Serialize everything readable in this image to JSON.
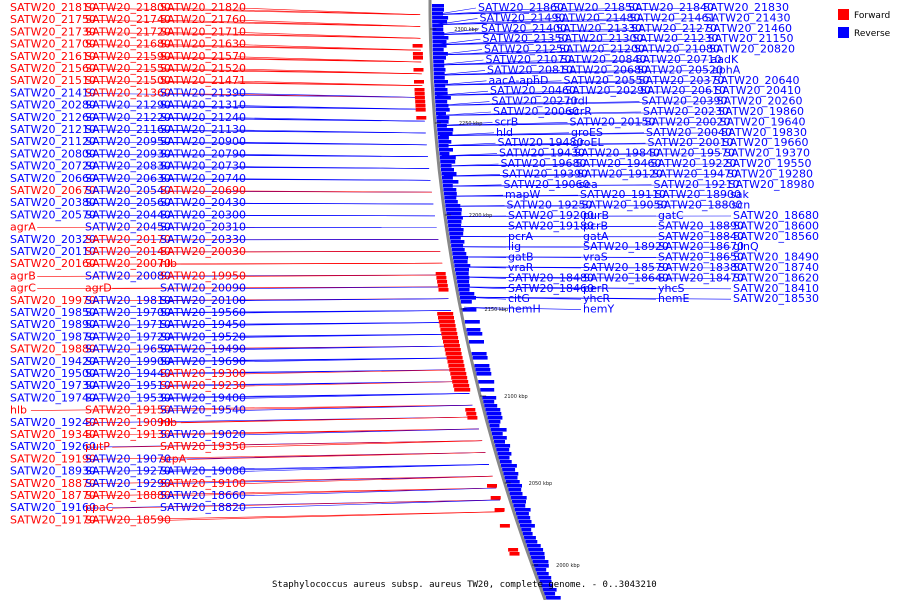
{
  "colors": {
    "forward": "#ff0000",
    "reverse": "#0000ff",
    "backbone": "#888888"
  },
  "legend": [
    {
      "label": "Forward",
      "color": "#ff0000"
    },
    {
      "label": "Reverse",
      "color": "#0000ff"
    }
  ],
  "caption": "Staphylococcus aureus subsp. aureus TW20, complete genome. - 0..3043210",
  "ticks": [
    "2300 kbp",
    "2250 kbp",
    "2200 kbp",
    "2150 kbp",
    "2100 kbp",
    "2050 kbp",
    "2000 kbp"
  ],
  "left_labels": [
    {
      "t": "SATW20_21810",
      "s": "f"
    },
    {
      "t": "SATW20_21800",
      "s": "f"
    },
    {
      "t": "SATW20_21820",
      "s": "f"
    },
    {
      "t": "SATW20_21750",
      "s": "f"
    },
    {
      "t": "SATW20_21740",
      "s": "f"
    },
    {
      "t": "SATW20_21760",
      "s": "f"
    },
    {
      "t": "SATW20_21730",
      "s": "f"
    },
    {
      "t": "SATW20_21720",
      "s": "f"
    },
    {
      "t": "SATW20_21710",
      "s": "f"
    },
    {
      "t": "SATW20_21700",
      "s": "f"
    },
    {
      "t": "SATW20_21680",
      "s": "f"
    },
    {
      "t": "SATW20_21630",
      "s": "f"
    },
    {
      "t": "SATW20_21610",
      "s": "f"
    },
    {
      "t": "SATW20_21590",
      "s": "f"
    },
    {
      "t": "SATW20_21570",
      "s": "f"
    },
    {
      "t": "SATW20_21560",
      "s": "f"
    },
    {
      "t": "SATW20_21550",
      "s": "f"
    },
    {
      "t": "SATW20_21520",
      "s": "f"
    },
    {
      "t": "SATW20_21510",
      "s": "f"
    },
    {
      "t": "SATW20_21500",
      "s": "f"
    },
    {
      "t": "SATW20_21471",
      "s": "f"
    },
    {
      "t": "SATW20_21410",
      "s": "r"
    },
    {
      "t": "SATW20_21360",
      "s": "f"
    },
    {
      "t": "SATW20_21390",
      "s": "r"
    },
    {
      "t": "SATW20_20280",
      "s": "r"
    },
    {
      "t": "SATW20_21290",
      "s": "r"
    },
    {
      "t": "SATW20_21310",
      "s": "r"
    },
    {
      "t": "SATW20_21260",
      "s": "r"
    },
    {
      "t": "SATW20_21220",
      "s": "r"
    },
    {
      "t": "SATW20_21240",
      "s": "r"
    },
    {
      "t": "SATW20_21210",
      "s": "r"
    },
    {
      "t": "SATW20_21160",
      "s": "r"
    },
    {
      "t": "SATW20_21130",
      "s": "r"
    },
    {
      "t": "SATW20_21120",
      "s": "r"
    },
    {
      "t": "SATW20_20950",
      "s": "r"
    },
    {
      "t": "SATW20_20900",
      "s": "r"
    },
    {
      "t": "SATW20_20800",
      "s": "r"
    },
    {
      "t": "SATW20_20930",
      "s": "r"
    },
    {
      "t": "SATW20_20790",
      "s": "r"
    },
    {
      "t": "SATW20_20720",
      "s": "r"
    },
    {
      "t": "SATW20_20830",
      "s": "r"
    },
    {
      "t": "SATW20_20730",
      "s": "r"
    },
    {
      "t": "SATW20_20660",
      "s": "r"
    },
    {
      "t": "SATW20_20630",
      "s": "r"
    },
    {
      "t": "SATW20_20740",
      "s": "r"
    },
    {
      "t": "SATW20_20670",
      "s": "f"
    },
    {
      "t": "SATW20_20540",
      "s": "r"
    },
    {
      "t": "SATW20_20690",
      "s": "f"
    },
    {
      "t": "SATW20_20380",
      "s": "r"
    },
    {
      "t": "SATW20_20560",
      "s": "r"
    },
    {
      "t": "SATW20_20430",
      "s": "r"
    },
    {
      "t": "SATW20_20570",
      "s": "r"
    },
    {
      "t": "SATW20_20440",
      "s": "r"
    },
    {
      "t": "SATW20_20300",
      "s": "r"
    },
    {
      "t": "agrA",
      "s": "f"
    },
    {
      "t": "SATW20_20450",
      "s": "r"
    },
    {
      "t": "SATW20_20310",
      "s": "r"
    },
    {
      "t": "SATW20_20320",
      "s": "r"
    },
    {
      "t": "SATW20_20170",
      "s": "f"
    },
    {
      "t": "SATW20_20330",
      "s": "r"
    },
    {
      "t": "SATW20_20110",
      "s": "r"
    },
    {
      "t": "SATW20_20140",
      "s": "f"
    },
    {
      "t": "SATW20_20030",
      "s": "f"
    },
    {
      "t": "SATW20_20160",
      "s": "f"
    },
    {
      "t": "SATW20_20070",
      "s": "f"
    },
    {
      "t": "hlb",
      "s": "f"
    },
    {
      "t": "agrB",
      "s": "f"
    },
    {
      "t": "SATW20_20080",
      "s": "r"
    },
    {
      "t": "SATW20_19950",
      "s": "f"
    },
    {
      "t": "agrC",
      "s": "f"
    },
    {
      "t": "agrD",
      "s": "f"
    },
    {
      "t": "SATW20_20090",
      "s": "r"
    },
    {
      "t": "SATW20_19970",
      "s": "f"
    },
    {
      "t": "SATW20_19810",
      "s": "r"
    },
    {
      "t": "SATW20_20100",
      "s": "r"
    },
    {
      "t": "SATW20_19850",
      "s": "r"
    },
    {
      "t": "SATW20_19700",
      "s": "r"
    },
    {
      "t": "SATW20_19560",
      "s": "r"
    },
    {
      "t": "SATW20_19890",
      "s": "r"
    },
    {
      "t": "SATW20_19710",
      "s": "r"
    },
    {
      "t": "SATW20_19450",
      "s": "r"
    },
    {
      "t": "SATW20_19870",
      "s": "r"
    },
    {
      "t": "SATW20_19720",
      "s": "r"
    },
    {
      "t": "SATW20_19520",
      "s": "r"
    },
    {
      "t": "SATW20_19880",
      "s": "f"
    },
    {
      "t": "SATW20_19650",
      "s": "r"
    },
    {
      "t": "SATW20_19490",
      "s": "r"
    },
    {
      "t": "SATW20_19420",
      "s": "r"
    },
    {
      "t": "SATW20_19900",
      "s": "r"
    },
    {
      "t": "SATW20_19690",
      "s": "r"
    },
    {
      "t": "SATW20_19500",
      "s": "r"
    },
    {
      "t": "SATW20_19440",
      "s": "r"
    },
    {
      "t": "SATW20_19300",
      "s": "f"
    },
    {
      "t": "SATW20_19730",
      "s": "r"
    },
    {
      "t": "SATW20_19510",
      "s": "r"
    },
    {
      "t": "SATW20_19230",
      "s": "f"
    },
    {
      "t": "SATW20_19740",
      "s": "r"
    },
    {
      "t": "SATW20_19530",
      "s": "r"
    },
    {
      "t": "SATW20_19400",
      "s": "r"
    },
    {
      "t": "hlb",
      "s": "f"
    },
    {
      "t": "SATW20_19150",
      "s": "f"
    },
    {
      "t": "SATW20_19540",
      "s": "r"
    },
    {
      "t": "SATW20_19240",
      "s": "r"
    },
    {
      "t": "SATW20_19090",
      "s": "f"
    },
    {
      "t": "hlb",
      "s": "f"
    },
    {
      "t": "SATW20_19340",
      "s": "f"
    },
    {
      "t": "SATW20_19130",
      "s": "f"
    },
    {
      "t": "SATW20_19020",
      "s": "r"
    },
    {
      "t": "SATW20_19260",
      "s": "r"
    },
    {
      "t": "putP",
      "s": "f"
    },
    {
      "t": "SATW20_19350",
      "s": "f"
    },
    {
      "t": "SATW20_19190",
      "s": "f"
    },
    {
      "t": "SATW20_19070",
      "s": "r"
    },
    {
      "t": "scpA",
      "s": "f"
    },
    {
      "t": "SATW20_18930",
      "s": "r"
    },
    {
      "t": "SATW20_19270",
      "s": "r"
    },
    {
      "t": "SATW20_19080",
      "s": "r"
    },
    {
      "t": "SATW20_18870",
      "s": "f"
    },
    {
      "t": "SATW20_19290",
      "s": "r"
    },
    {
      "t": "SATW20_19100",
      "s": "f"
    },
    {
      "t": "SATW20_18770",
      "s": "f"
    },
    {
      "t": "SATW20_18880",
      "s": "f"
    },
    {
      "t": "SATW20_18660",
      "s": "r"
    },
    {
      "t": "SATW20_19160",
      "s": "r"
    },
    {
      "t": "ppaC",
      "s": "f"
    },
    {
      "t": "SATW20_18820",
      "s": "r"
    },
    {
      "t": "SATW20_19170",
      "s": "f"
    },
    {
      "t": "SATW20_18590",
      "s": "f"
    }
  ],
  "right_labels": [
    {
      "t": "SATW20_21860",
      "s": "r"
    },
    {
      "t": "SATW20_21850",
      "s": "r"
    },
    {
      "t": "SATW20_21840",
      "s": "r"
    },
    {
      "t": "SATW20_21830",
      "s": "r"
    },
    {
      "t": "SATW20_21490",
      "s": "r"
    },
    {
      "t": "SATW20_21480",
      "s": "r"
    },
    {
      "t": "SATW20_21461",
      "s": "r"
    },
    {
      "t": "SATW20_21430",
      "s": "r"
    },
    {
      "t": "SATW20_21400",
      "s": "r"
    },
    {
      "t": "SATW20_21330",
      "s": "r"
    },
    {
      "t": "SATW20_21270",
      "s": "r"
    },
    {
      "t": "SATW20_21460",
      "s": "r"
    },
    {
      "t": "SATW20_21350",
      "s": "r"
    },
    {
      "t": "SATW20_21300",
      "s": "r"
    },
    {
      "t": "SATW20_21230",
      "s": "r"
    },
    {
      "t": "SATW20_21150",
      "s": "r"
    },
    {
      "t": "SATW20_21250",
      "s": "r"
    },
    {
      "t": "SATW20_21200",
      "s": "r"
    },
    {
      "t": "SATW20_21080",
      "s": "r"
    },
    {
      "t": "SATW20_20820",
      "s": "r"
    },
    {
      "t": "SATW20_21070",
      "s": "r"
    },
    {
      "t": "SATW20_20840",
      "s": "r"
    },
    {
      "t": "SATW20_20710",
      "s": "r"
    },
    {
      "t": "aadK",
      "s": "r"
    },
    {
      "t": "SATW20_20810",
      "s": "r"
    },
    {
      "t": "SATW20_20680",
      "s": "r"
    },
    {
      "t": "SATW20_20520",
      "s": "r"
    },
    {
      "t": "aphA",
      "s": "r"
    },
    {
      "t": "aacA-aphD",
      "s": "r"
    },
    {
      "t": "SATW20_20550",
      "s": "r"
    },
    {
      "t": "SATW20_20370",
      "s": "r"
    },
    {
      "t": "SATW20_20640",
      "s": "r"
    },
    {
      "t": "SATW20_20460",
      "s": "r"
    },
    {
      "t": "SATW20_20290",
      "s": "r"
    },
    {
      "t": "SATW20_20610",
      "s": "r"
    },
    {
      "t": "SATW20_20410",
      "s": "r"
    },
    {
      "t": "SATW20_20270",
      "s": "r"
    },
    {
      "t": "nrdI",
      "s": "r"
    },
    {
      "t": "SATW20_20390",
      "s": "r"
    },
    {
      "t": "SATW20_20260",
      "s": "r"
    },
    {
      "t": "SATW20_20060",
      "s": "r"
    },
    {
      "t": "scrR",
      "s": "r"
    },
    {
      "t": "SATW20_20230",
      "s": "r"
    },
    {
      "t": "SATW20_19860",
      "s": "r"
    },
    {
      "t": "scrB",
      "s": "r"
    },
    {
      "t": "SATW20_20150",
      "s": "r"
    },
    {
      "t": "SATW20_20020",
      "s": "r"
    },
    {
      "t": "SATW20_19640",
      "s": "r"
    },
    {
      "t": "hld",
      "s": "r"
    },
    {
      "t": "groES",
      "s": "r"
    },
    {
      "t": "SATW20_20040",
      "s": "r"
    },
    {
      "t": "SATW20_19830",
      "s": "r"
    },
    {
      "t": "SATW20_19480",
      "s": "r"
    },
    {
      "t": "groEL",
      "s": "r"
    },
    {
      "t": "SATW20_20010",
      "s": "r"
    },
    {
      "t": "SATW20_19660",
      "s": "r"
    },
    {
      "t": "SATW20_19430",
      "s": "r"
    },
    {
      "t": "SATW20_19840",
      "s": "r"
    },
    {
      "t": "SATW20_19570",
      "s": "r"
    },
    {
      "t": "SATW20_19370",
      "s": "r"
    },
    {
      "t": "SATW20_19680",
      "s": "r"
    },
    {
      "t": "SATW20_19460",
      "s": "r"
    },
    {
      "t": "SATW20_19220",
      "s": "r"
    },
    {
      "t": "SATW20_19550",
      "s": "r"
    },
    {
      "t": "SATW20_19390",
      "s": "r"
    },
    {
      "t": "SATW20_19120",
      "s": "r"
    },
    {
      "t": "SATW20_19470",
      "s": "r"
    },
    {
      "t": "SATW20_19280",
      "s": "r"
    },
    {
      "t": "SATW20_19060",
      "s": "r"
    },
    {
      "t": "sea",
      "s": "r"
    },
    {
      "t": "SATW20_19210",
      "s": "r"
    },
    {
      "t": "SATW20_18980",
      "s": "r"
    },
    {
      "t": "mapW",
      "s": "r"
    },
    {
      "t": "SATW20_19110",
      "s": "r"
    },
    {
      "t": "SATW20_18900",
      "s": "r"
    },
    {
      "t": "sak",
      "s": "r"
    },
    {
      "t": "SATW20_19250",
      "s": "r"
    },
    {
      "t": "SATW20_19050",
      "s": "r"
    },
    {
      "t": "SATW20_18800",
      "s": "r"
    },
    {
      "t": "scn",
      "s": "r"
    },
    {
      "t": "SATW20_19200",
      "s": "r"
    },
    {
      "t": "purB",
      "s": "r"
    },
    {
      "t": "gatC",
      "s": "r"
    },
    {
      "t": "SATW20_18680",
      "s": "r"
    },
    {
      "t": "SATW20_19180",
      "s": "r"
    },
    {
      "t": "pcrB",
      "s": "r"
    },
    {
      "t": "SATW20_18890",
      "s": "r"
    },
    {
      "t": "SATW20_18600",
      "s": "r"
    },
    {
      "t": "pcrA",
      "s": "r"
    },
    {
      "t": "gatA",
      "s": "r"
    },
    {
      "t": "SATW20_18840",
      "s": "r"
    },
    {
      "t": "SATW20_18560",
      "s": "r"
    },
    {
      "t": "lig",
      "s": "r"
    },
    {
      "t": "SATW20_18920",
      "s": "r"
    },
    {
      "t": "SATW20_18670",
      "s": "r"
    },
    {
      "t": "glnQ",
      "s": "r"
    },
    {
      "t": "gatB",
      "s": "r"
    },
    {
      "t": "vraS",
      "s": "r"
    },
    {
      "t": "SATW20_18650",
      "s": "r"
    },
    {
      "t": "SATW20_18490",
      "s": "r"
    },
    {
      "t": "vraR",
      "s": "r"
    },
    {
      "t": "SATW20_18570",
      "s": "r"
    },
    {
      "t": "SATW20_18380",
      "s": "r"
    },
    {
      "t": "SATW20_18740",
      "s": "r"
    },
    {
      "t": "SATW20_18480",
      "s": "r"
    },
    {
      "t": "SATW20_18640",
      "s": "r"
    },
    {
      "t": "SATW20_18470",
      "s": "r"
    },
    {
      "t": "SATW20_18620",
      "s": "r"
    },
    {
      "t": "SATW20_18460",
      "s": "r"
    },
    {
      "t": "perR",
      "s": "r"
    },
    {
      "t": "yhcS",
      "s": "r"
    },
    {
      "t": "SATW20_18410",
      "s": "r"
    },
    {
      "t": "citG",
      "s": "r"
    },
    {
      "t": "yhcR",
      "s": "r"
    },
    {
      "t": "hemE",
      "s": "r"
    },
    {
      "t": "SATW20_18530",
      "s": "r"
    },
    {
      "t": "hemH",
      "s": "r"
    },
    {
      "t": "hemY",
      "s": "r"
    }
  ]
}
